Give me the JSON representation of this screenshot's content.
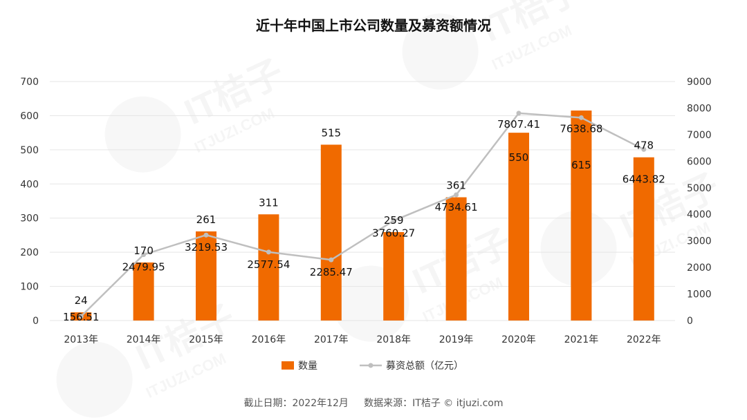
{
  "chart_data": {
    "type": "bar+line",
    "title": "近十年中国上市公司数量及募资额情况",
    "categories": [
      "2013年",
      "2014年",
      "2015年",
      "2016年",
      "2017年",
      "2018年",
      "2019年",
      "2020年",
      "2021年",
      "2022年"
    ],
    "series": [
      {
        "name": "数量",
        "type": "bar",
        "axis": "left",
        "color": "#F06A00",
        "values": [
          24,
          170,
          261,
          311,
          515,
          259,
          361,
          550,
          615,
          478
        ],
        "labels": [
          "24",
          "170",
          "261",
          "311",
          "515",
          "259",
          "361",
          "550",
          "615",
          "478"
        ]
      },
      {
        "name": "募资总额（亿元）",
        "type": "line",
        "axis": "right",
        "color": "#BFBFBF",
        "values": [
          156.51,
          2479.95,
          3219.53,
          2577.54,
          2285.47,
          3760.27,
          4734.61,
          7807.41,
          7638.68,
          6443.82
        ],
        "labels": [
          "156.51",
          "2479.95",
          "3219.53",
          "2577.54",
          "2285.47",
          "3760.27",
          "4734.61",
          "7807.41",
          "7638.68",
          "6443.82"
        ]
      }
    ],
    "y_left": {
      "min": 0,
      "max": 700,
      "step": 100
    },
    "y_right": {
      "min": 0,
      "max": 9000,
      "step": 1000
    },
    "legend_position": "bottom"
  },
  "footnote": "截止日期：2022年12月     数据来源：IT桔子 © itjuzi.com",
  "watermark": {
    "brand": "IT桔子",
    "domain": "ITJUZI.COM"
  }
}
